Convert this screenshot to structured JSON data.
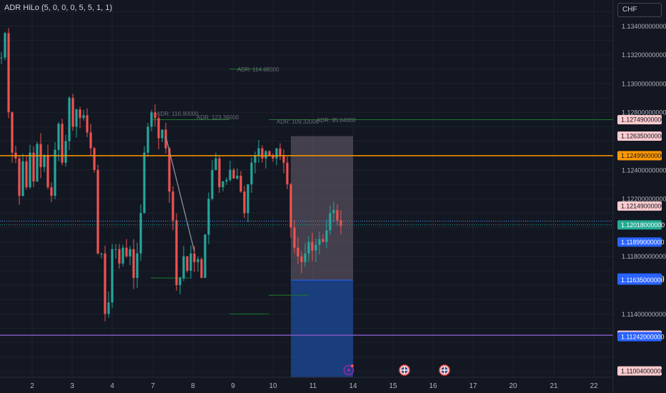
{
  "indicator_legend": "ADR HiLo (5, 0, 0, 0, 5, 5, 1, 1)",
  "currency": "CHF",
  "colors": {
    "background": "#131722",
    "grid": "#1e222d",
    "up": "#26a69a",
    "down": "#ef5350",
    "orange_line": "#ff9800",
    "purple_line": "#7e57c2",
    "adr_line": "#1b7d28",
    "position_box_upper": "#6b6170",
    "position_box_lower": "#1e4b9a"
  },
  "chart_data": {
    "type": "candlestick",
    "x_tick_labels": [
      "2",
      "3",
      "4",
      "7",
      "8",
      "9",
      "10",
      "11",
      "14",
      "15",
      "16",
      "17",
      "20",
      "21",
      "22"
    ],
    "y_tick_labels": [
      "1.13400000000",
      "1.13200000000",
      "1.13000000000",
      "1.12800000000",
      "1.12400000000",
      "1.12200000000",
      "1.11800000000",
      "1.11400000000"
    ],
    "ylim": [
      1.1096,
      1.1358
    ],
    "price_labels": [
      {
        "text": "1.12749000000",
        "value": 1.12749,
        "color": "#fccbcd",
        "dark_text": true
      },
      {
        "text": "1.12635000000",
        "value": 1.12635,
        "color": "#fccbcd",
        "dark_text": true
      },
      {
        "text": "1.12499000000",
        "value": 1.12499,
        "color": "#ff9800",
        "dark_text": true
      },
      {
        "text": "1.12149000000",
        "value": 1.12149,
        "color": "#fccbcd",
        "dark_text": true
      },
      {
        "text": "1.12018000000",
        "value": 1.12018,
        "color": "#22ab94",
        "dark_text": false
      },
      {
        "text": "1.11899000000",
        "value": 1.11899,
        "color": "#2962ff",
        "dark_text": false
      },
      {
        "text": "1.11649000000",
        "value": 1.11649,
        "color": "#2962ff",
        "dark_text": false
      },
      {
        "text": "1.11635000000",
        "value": 1.11635,
        "color": "#2962ff",
        "dark_text": false
      },
      {
        "text": "1.11252000000",
        "value": 1.11252,
        "color": "#fccbcd",
        "dark_text": true
      },
      {
        "text": "1.11242000000",
        "value": 1.11242,
        "color": "#2962ff",
        "dark_text": false
      },
      {
        "text": "1.11004000000",
        "value": 1.11004,
        "color": "#fccbcd",
        "dark_text": true
      }
    ],
    "horizontal_lines": [
      {
        "name": "orange-level",
        "value": 1.12499,
        "color": "#ff9800"
      },
      {
        "name": "purple-level",
        "value": 1.11252,
        "color": "#7e57c2"
      }
    ],
    "adr_labels": [
      "ADR: 116.90000",
      "ADR: 123.36000",
      "ADR: 114.68000",
      "ADR: 109.32000",
      "ADR: 95.64000"
    ],
    "price_path": [
      1.1318,
      1.1335,
      1.128,
      1.1252,
      1.1248,
      1.1222,
      1.1246,
      1.1228,
      1.1252,
      1.1232,
      1.1258,
      1.1242,
      1.125,
      1.1228,
      1.1222,
      1.1254,
      1.1272,
      1.1245,
      1.126,
      1.129,
      1.127,
      1.1282,
      1.1276,
      1.1278,
      1.1266,
      1.1255,
      1.124,
      1.1182,
      1.1182,
      1.114,
      1.1148,
      1.1185,
      1.1185,
      1.1175,
      1.1186,
      1.118,
      1.1185,
      1.1165,
      1.1182,
      1.121,
      1.1252,
      1.127,
      1.128,
      1.1276,
      1.1262,
      1.1268,
      1.1255,
      1.1225,
      1.1205,
      1.116,
      1.1165,
      1.118,
      1.117,
      1.1182,
      1.1176,
      1.1178,
      1.1165,
      1.1195,
      1.122,
      1.124,
      1.1248,
      1.1228,
      1.1232,
      1.1233,
      1.124,
      1.1234,
      1.1236,
      1.1225,
      1.121,
      1.123,
      1.1245,
      1.125,
      1.1255,
      1.1248,
      1.1253,
      1.125,
      1.1248,
      1.1255,
      1.125,
      1.1245,
      1.123,
      1.12,
      1.1186,
      1.118,
      1.1176,
      1.1182,
      1.119,
      1.1184,
      1.1188,
      1.1192,
      1.119,
      1.1198,
      1.121,
      1.1212,
      1.1205,
      1.1201
    ]
  }
}
